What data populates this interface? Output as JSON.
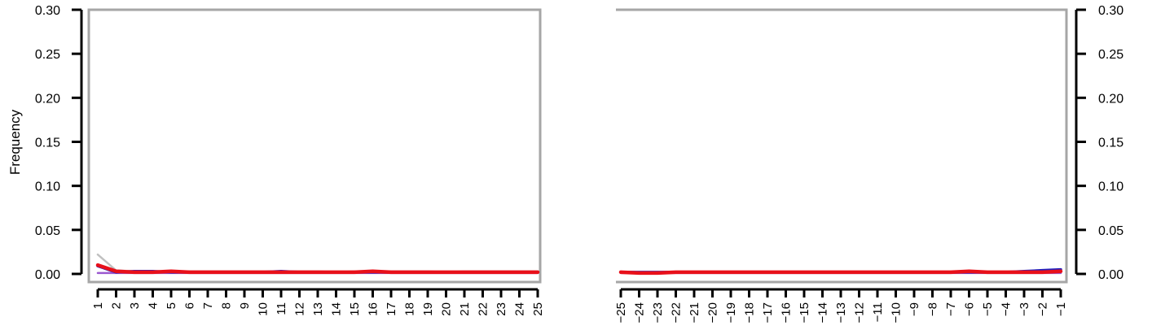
{
  "chart_data": [
    {
      "type": "line",
      "panel": "left",
      "ylabel": "Frequency",
      "xlabel": "",
      "ylim": [
        0,
        0.3
      ],
      "yticks": [
        "0.00",
        "0.05",
        "0.10",
        "0.15",
        "0.20",
        "0.25",
        "0.30"
      ],
      "x": [
        1,
        2,
        3,
        4,
        5,
        6,
        7,
        8,
        9,
        10,
        11,
        12,
        13,
        14,
        15,
        16,
        17,
        18,
        19,
        20,
        21,
        22,
        23,
        24,
        25
      ],
      "x_tick_labels": [
        "1",
        "2",
        "3",
        "4",
        "5",
        "6",
        "7",
        "8",
        "9",
        "10",
        "11",
        "12",
        "13",
        "14",
        "15",
        "16",
        "17",
        "18",
        "19",
        "20",
        "21",
        "22",
        "23",
        "24",
        "25"
      ],
      "y_axis_side": "left",
      "series": [
        {
          "color": "#c0c0c0",
          "values": [
            0.022,
            0.004,
            0.003,
            0.003,
            0.003,
            0.003,
            0.003,
            0.003,
            0.003,
            0.003,
            0.003,
            0.003,
            0.003,
            0.002,
            0.003,
            0.003,
            0.003,
            0.003,
            0.003,
            0.002,
            0.003,
            0.003,
            0.003,
            0.003,
            0.003
          ]
        },
        {
          "color": "#9b59d0",
          "values": [
            0.001,
            0.001,
            0.001,
            0.001,
            0.001,
            0.001,
            0.001,
            0.001,
            0.001,
            0.001,
            0.001,
            0.001,
            0.001,
            0.001,
            0.001,
            0.001,
            0.001,
            0.001,
            0.001,
            0.001,
            0.001,
            0.001,
            0.001,
            0.001,
            0.001
          ]
        },
        {
          "color": "#2020c0",
          "values": [
            0.009,
            0.002,
            0.003,
            0.003,
            0.002,
            0.002,
            0.002,
            0.002,
            0.002,
            0.002,
            0.003,
            0.002,
            0.002,
            0.002,
            0.002,
            0.002,
            0.002,
            0.002,
            0.002,
            0.002,
            0.002,
            0.002,
            0.002,
            0.002,
            0.002
          ]
        },
        {
          "color": "#e8101a",
          "values": [
            0.01,
            0.003,
            0.002,
            0.002,
            0.003,
            0.002,
            0.002,
            0.002,
            0.002,
            0.002,
            0.002,
            0.002,
            0.002,
            0.002,
            0.002,
            0.003,
            0.002,
            0.002,
            0.002,
            0.002,
            0.002,
            0.002,
            0.002,
            0.002,
            0.002
          ]
        }
      ]
    },
    {
      "type": "line",
      "panel": "right",
      "ylabel": "",
      "xlabel": "",
      "ylim": [
        0,
        0.3
      ],
      "yticks": [
        "0.00",
        "0.05",
        "0.10",
        "0.15",
        "0.20",
        "0.25",
        "0.30"
      ],
      "x": [
        -25,
        -24,
        -23,
        -22,
        -21,
        -20,
        -19,
        -18,
        -17,
        -16,
        -15,
        -14,
        -13,
        -12,
        -11,
        -10,
        -9,
        -8,
        -7,
        -6,
        -5,
        -4,
        -3,
        -2,
        -1
      ],
      "x_tick_labels": [
        "−25",
        "−24",
        "−23",
        "−22",
        "−21",
        "−20",
        "−19",
        "−18",
        "−17",
        "−16",
        "−15",
        "−14",
        "−13",
        "−12",
        "−11",
        "−10",
        "−9",
        "−8",
        "−7",
        "−6",
        "−5",
        "−4",
        "−3",
        "−2",
        "−1"
      ],
      "y_axis_side": "right",
      "series": [
        {
          "color": "#c0c0c0",
          "values": [
            0.002,
            0.002,
            0.002,
            0.002,
            0.002,
            0.002,
            0.002,
            0.002,
            0.002,
            0.002,
            0.002,
            0.002,
            0.002,
            0.002,
            0.002,
            0.002,
            0.002,
            0.002,
            0.002,
            0.002,
            0.002,
            0.002,
            0.002,
            0.002,
            0.002
          ]
        },
        {
          "color": "#9b59d0",
          "values": [
            0.001,
            0.001,
            0.001,
            0.001,
            0.001,
            0.001,
            0.001,
            0.001,
            0.001,
            0.001,
            0.001,
            0.001,
            0.001,
            0.001,
            0.001,
            0.001,
            0.001,
            0.001,
            0.001,
            0.001,
            0.001,
            0.001,
            0.001,
            0.001,
            0.001
          ]
        },
        {
          "color": "#2020c0",
          "values": [
            0.002,
            0.002,
            0.002,
            0.002,
            0.002,
            0.002,
            0.002,
            0.002,
            0.002,
            0.002,
            0.002,
            0.002,
            0.002,
            0.002,
            0.002,
            0.002,
            0.002,
            0.002,
            0.002,
            0.002,
            0.002,
            0.002,
            0.003,
            0.004,
            0.005
          ]
        },
        {
          "color": "#e8101a",
          "values": [
            0.002,
            0.001,
            0.001,
            0.002,
            0.002,
            0.002,
            0.002,
            0.002,
            0.002,
            0.002,
            0.002,
            0.002,
            0.002,
            0.002,
            0.002,
            0.002,
            0.002,
            0.002,
            0.002,
            0.003,
            0.002,
            0.002,
            0.002,
            0.002,
            0.003
          ]
        }
      ]
    }
  ]
}
